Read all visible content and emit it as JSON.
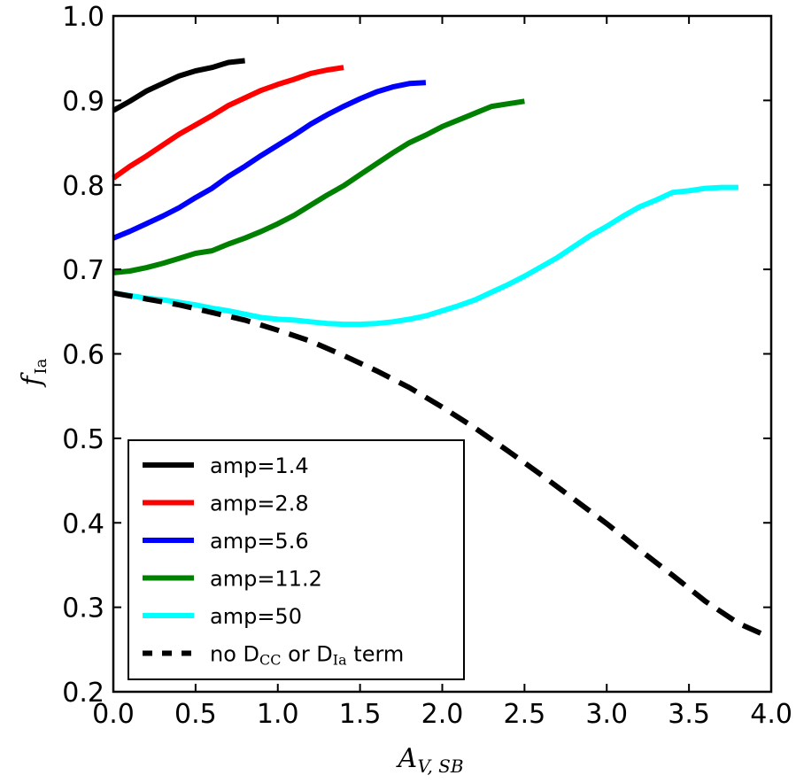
{
  "chart_data": {
    "type": "line",
    "xlabel": {
      "main": "A",
      "sub": "V, SB"
    },
    "ylabel": {
      "main": "f",
      "sub": "Ia"
    },
    "xlim": [
      0.0,
      4.0
    ],
    "ylim": [
      0.2,
      1.0
    ],
    "x_ticks": [
      "0.0",
      "0.5",
      "1.0",
      "1.5",
      "2.0",
      "2.5",
      "3.0",
      "3.5",
      "4.0"
    ],
    "y_ticks": [
      "0.2",
      "0.3",
      "0.4",
      "0.5",
      "0.6",
      "0.7",
      "0.8",
      "0.9",
      "1.0"
    ],
    "grid": false,
    "legend_position": "lower-left",
    "series": [
      {
        "name": "amp=1.4",
        "color": "#000000",
        "style": "solid",
        "x": [
          0.0,
          0.1,
          0.2,
          0.3,
          0.4,
          0.5,
          0.6,
          0.7,
          0.8
        ],
        "y": [
          0.888,
          0.899,
          0.911,
          0.92,
          0.929,
          0.935,
          0.939,
          0.945,
          0.947
        ]
      },
      {
        "name": "amp=2.8",
        "color": "#ff0000",
        "style": "solid",
        "x": [
          0.0,
          0.1,
          0.2,
          0.3,
          0.4,
          0.5,
          0.6,
          0.7,
          0.8,
          0.9,
          1.0,
          1.1,
          1.2,
          1.3,
          1.4
        ],
        "y": [
          0.808,
          0.822,
          0.834,
          0.847,
          0.86,
          0.871,
          0.882,
          0.894,
          0.903,
          0.912,
          0.919,
          0.925,
          0.932,
          0.936,
          0.939
        ]
      },
      {
        "name": "amp=5.6",
        "color": "#0000ff",
        "style": "solid",
        "x": [
          0.0,
          0.1,
          0.2,
          0.3,
          0.4,
          0.5,
          0.6,
          0.7,
          0.8,
          0.9,
          1.0,
          1.1,
          1.2,
          1.3,
          1.4,
          1.5,
          1.6,
          1.7,
          1.8,
          1.9
        ],
        "y": [
          0.737,
          0.745,
          0.754,
          0.763,
          0.773,
          0.785,
          0.796,
          0.81,
          0.822,
          0.835,
          0.847,
          0.859,
          0.872,
          0.883,
          0.893,
          0.902,
          0.91,
          0.916,
          0.92,
          0.921
        ]
      },
      {
        "name": "amp=11.2",
        "color": "#008000",
        "style": "solid",
        "x": [
          0.0,
          0.1,
          0.2,
          0.3,
          0.4,
          0.5,
          0.6,
          0.7,
          0.8,
          0.9,
          1.0,
          1.1,
          1.2,
          1.3,
          1.4,
          1.5,
          1.6,
          1.7,
          1.8,
          1.9,
          2.0,
          2.1,
          2.2,
          2.3,
          2.4,
          2.5
        ],
        "y": [
          0.696,
          0.698,
          0.702,
          0.707,
          0.713,
          0.719,
          0.722,
          0.73,
          0.737,
          0.745,
          0.754,
          0.764,
          0.776,
          0.788,
          0.799,
          0.812,
          0.825,
          0.838,
          0.85,
          0.859,
          0.869,
          0.877,
          0.885,
          0.893,
          0.896,
          0.899
        ]
      },
      {
        "name": "amp=50",
        "color": "#00ffff",
        "style": "solid",
        "x": [
          0.0,
          0.1,
          0.2,
          0.3,
          0.4,
          0.5,
          0.6,
          0.7,
          0.8,
          0.9,
          1.0,
          1.1,
          1.2,
          1.3,
          1.4,
          1.5,
          1.6,
          1.7,
          1.8,
          1.9,
          2.0,
          2.1,
          2.2,
          2.3,
          2.4,
          2.5,
          2.6,
          2.7,
          2.8,
          2.9,
          3.0,
          3.1,
          3.2,
          3.3,
          3.4,
          3.5,
          3.6,
          3.7,
          3.8
        ],
        "y": [
          0.672,
          0.669,
          0.666,
          0.664,
          0.661,
          0.658,
          0.654,
          0.651,
          0.647,
          0.643,
          0.641,
          0.64,
          0.638,
          0.636,
          0.635,
          0.635,
          0.636,
          0.638,
          0.641,
          0.645,
          0.651,
          0.657,
          0.664,
          0.673,
          0.682,
          0.692,
          0.703,
          0.714,
          0.727,
          0.74,
          0.751,
          0.763,
          0.774,
          0.782,
          0.791,
          0.793,
          0.796,
          0.797,
          0.797
        ]
      },
      {
        "name": "no D_CC or D_Ia term",
        "legend_label": {
          "pre": "no D",
          "sub1": "CC",
          "mid": " or D",
          "sub2": "Ia",
          "post": " term"
        },
        "color": "#000000",
        "style": "dashed",
        "x": [
          0.0,
          0.2,
          0.4,
          0.6,
          0.8,
          1.0,
          1.2,
          1.4,
          1.6,
          1.8,
          2.0,
          2.2,
          2.4,
          2.6,
          2.8,
          3.0,
          3.2,
          3.4,
          3.6,
          3.8,
          3.95
        ],
        "y": [
          0.672,
          0.665,
          0.658,
          0.649,
          0.64,
          0.628,
          0.615,
          0.598,
          0.58,
          0.56,
          0.537,
          0.512,
          0.485,
          0.457,
          0.428,
          0.399,
          0.368,
          0.338,
          0.307,
          0.281,
          0.268
        ]
      }
    ]
  }
}
